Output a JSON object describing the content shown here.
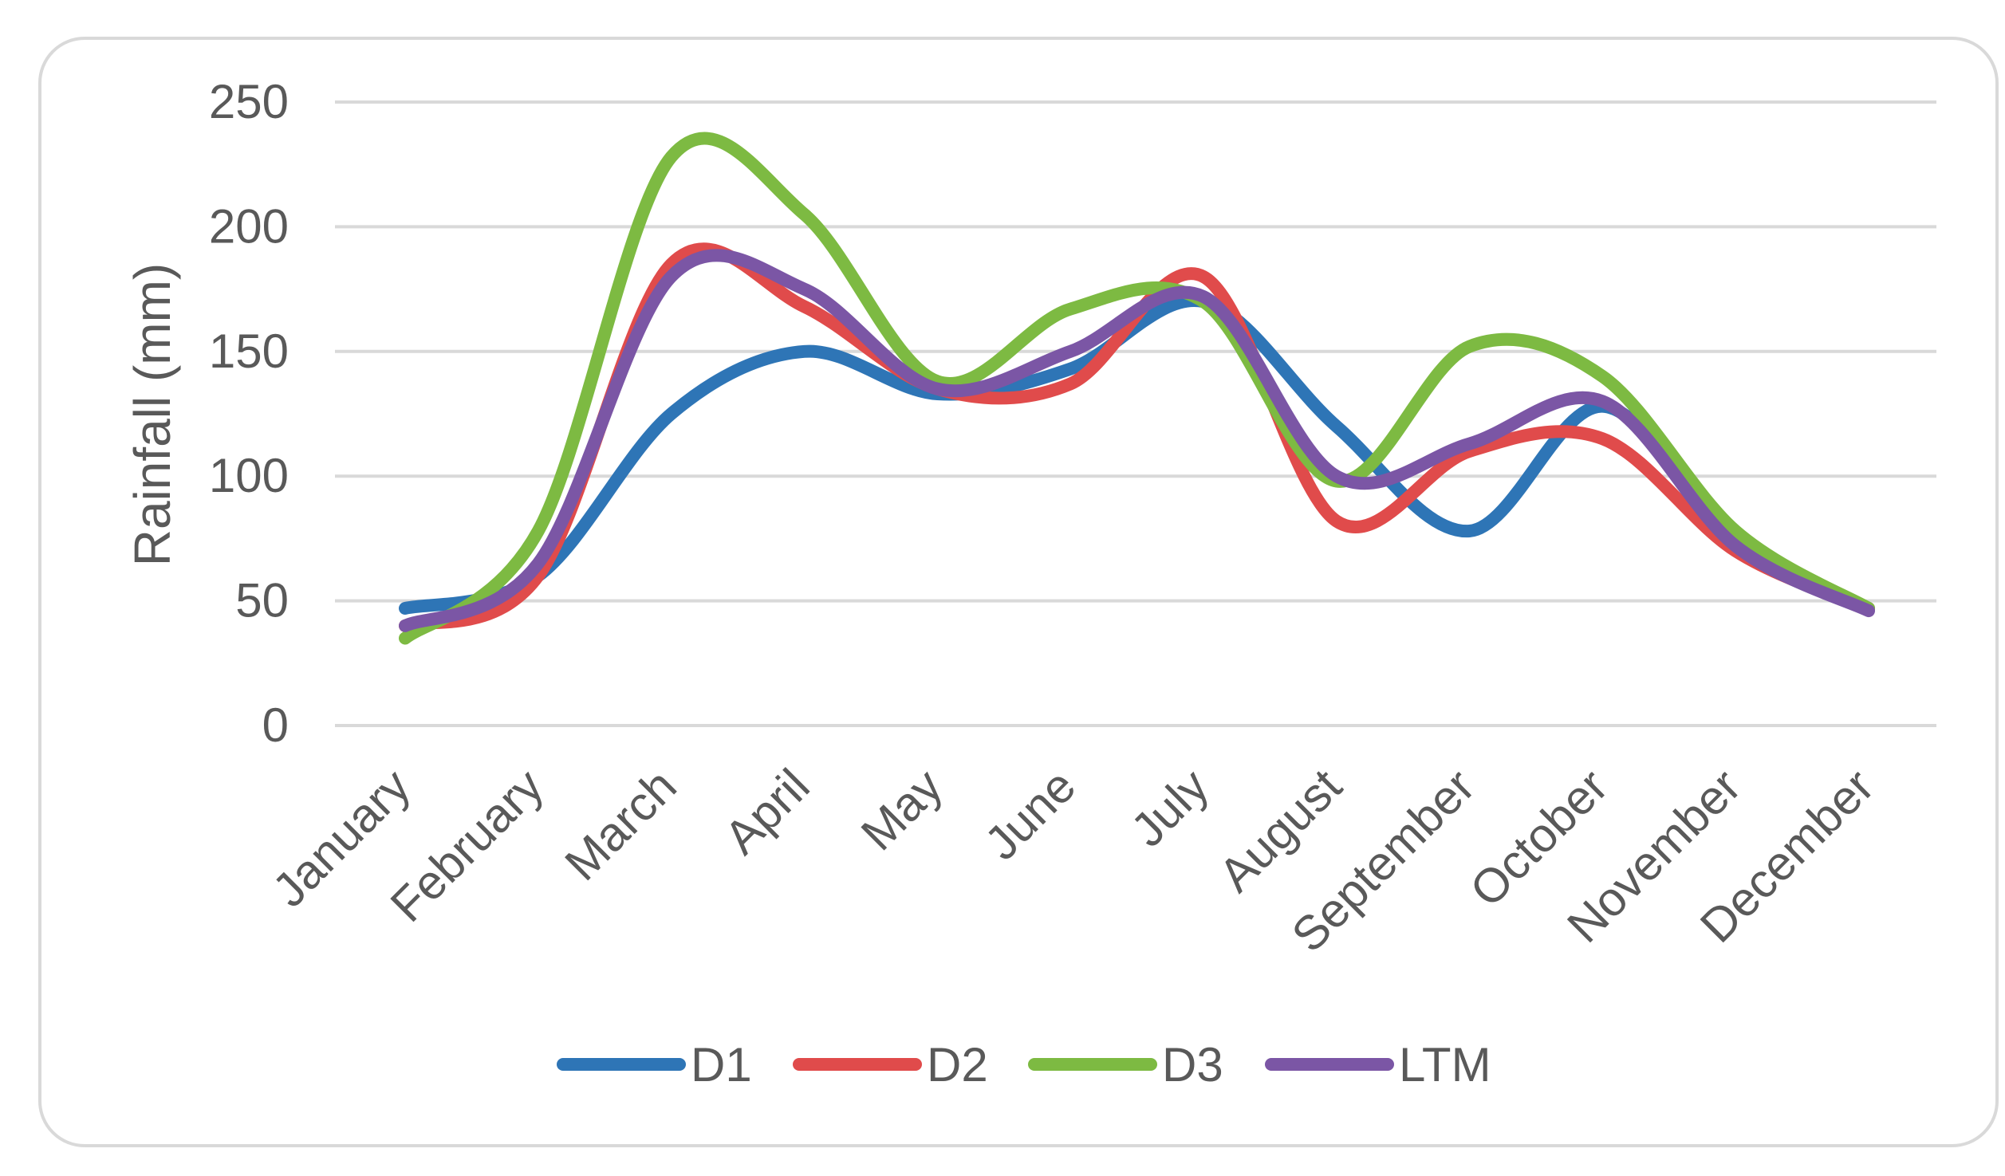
{
  "chart_data": {
    "type": "line",
    "title": "",
    "xlabel": "",
    "ylabel": "Rainfall (mm)",
    "ylim": [
      0,
      250
    ],
    "yticks": [
      0,
      50,
      100,
      150,
      200,
      250
    ],
    "grid": true,
    "smooth": true,
    "legend_position": "bottom",
    "categories": [
      "January",
      "February",
      "March",
      "April",
      "May",
      "June",
      "July",
      "August",
      "September",
      "October",
      "November",
      "December"
    ],
    "series": [
      {
        "name": "D1",
        "color": "#2E75B6",
        "values": [
          47,
          60,
          125,
          150,
          133,
          143,
          170,
          120,
          78,
          128,
          73,
          47
        ]
      },
      {
        "name": "D2",
        "color": "#E04B4B",
        "values": [
          40,
          60,
          185,
          168,
          135,
          137,
          180,
          82,
          110,
          115,
          70,
          47
        ]
      },
      {
        "name": "D3",
        "color": "#7DBA42",
        "values": [
          35,
          78,
          228,
          205,
          138,
          167,
          170,
          98,
          152,
          140,
          78,
          47
        ]
      },
      {
        "name": "LTM",
        "color": "#7B56A5",
        "values": [
          40,
          65,
          180,
          175,
          135,
          150,
          172,
          100,
          113,
          130,
          72,
          46
        ]
      }
    ]
  }
}
